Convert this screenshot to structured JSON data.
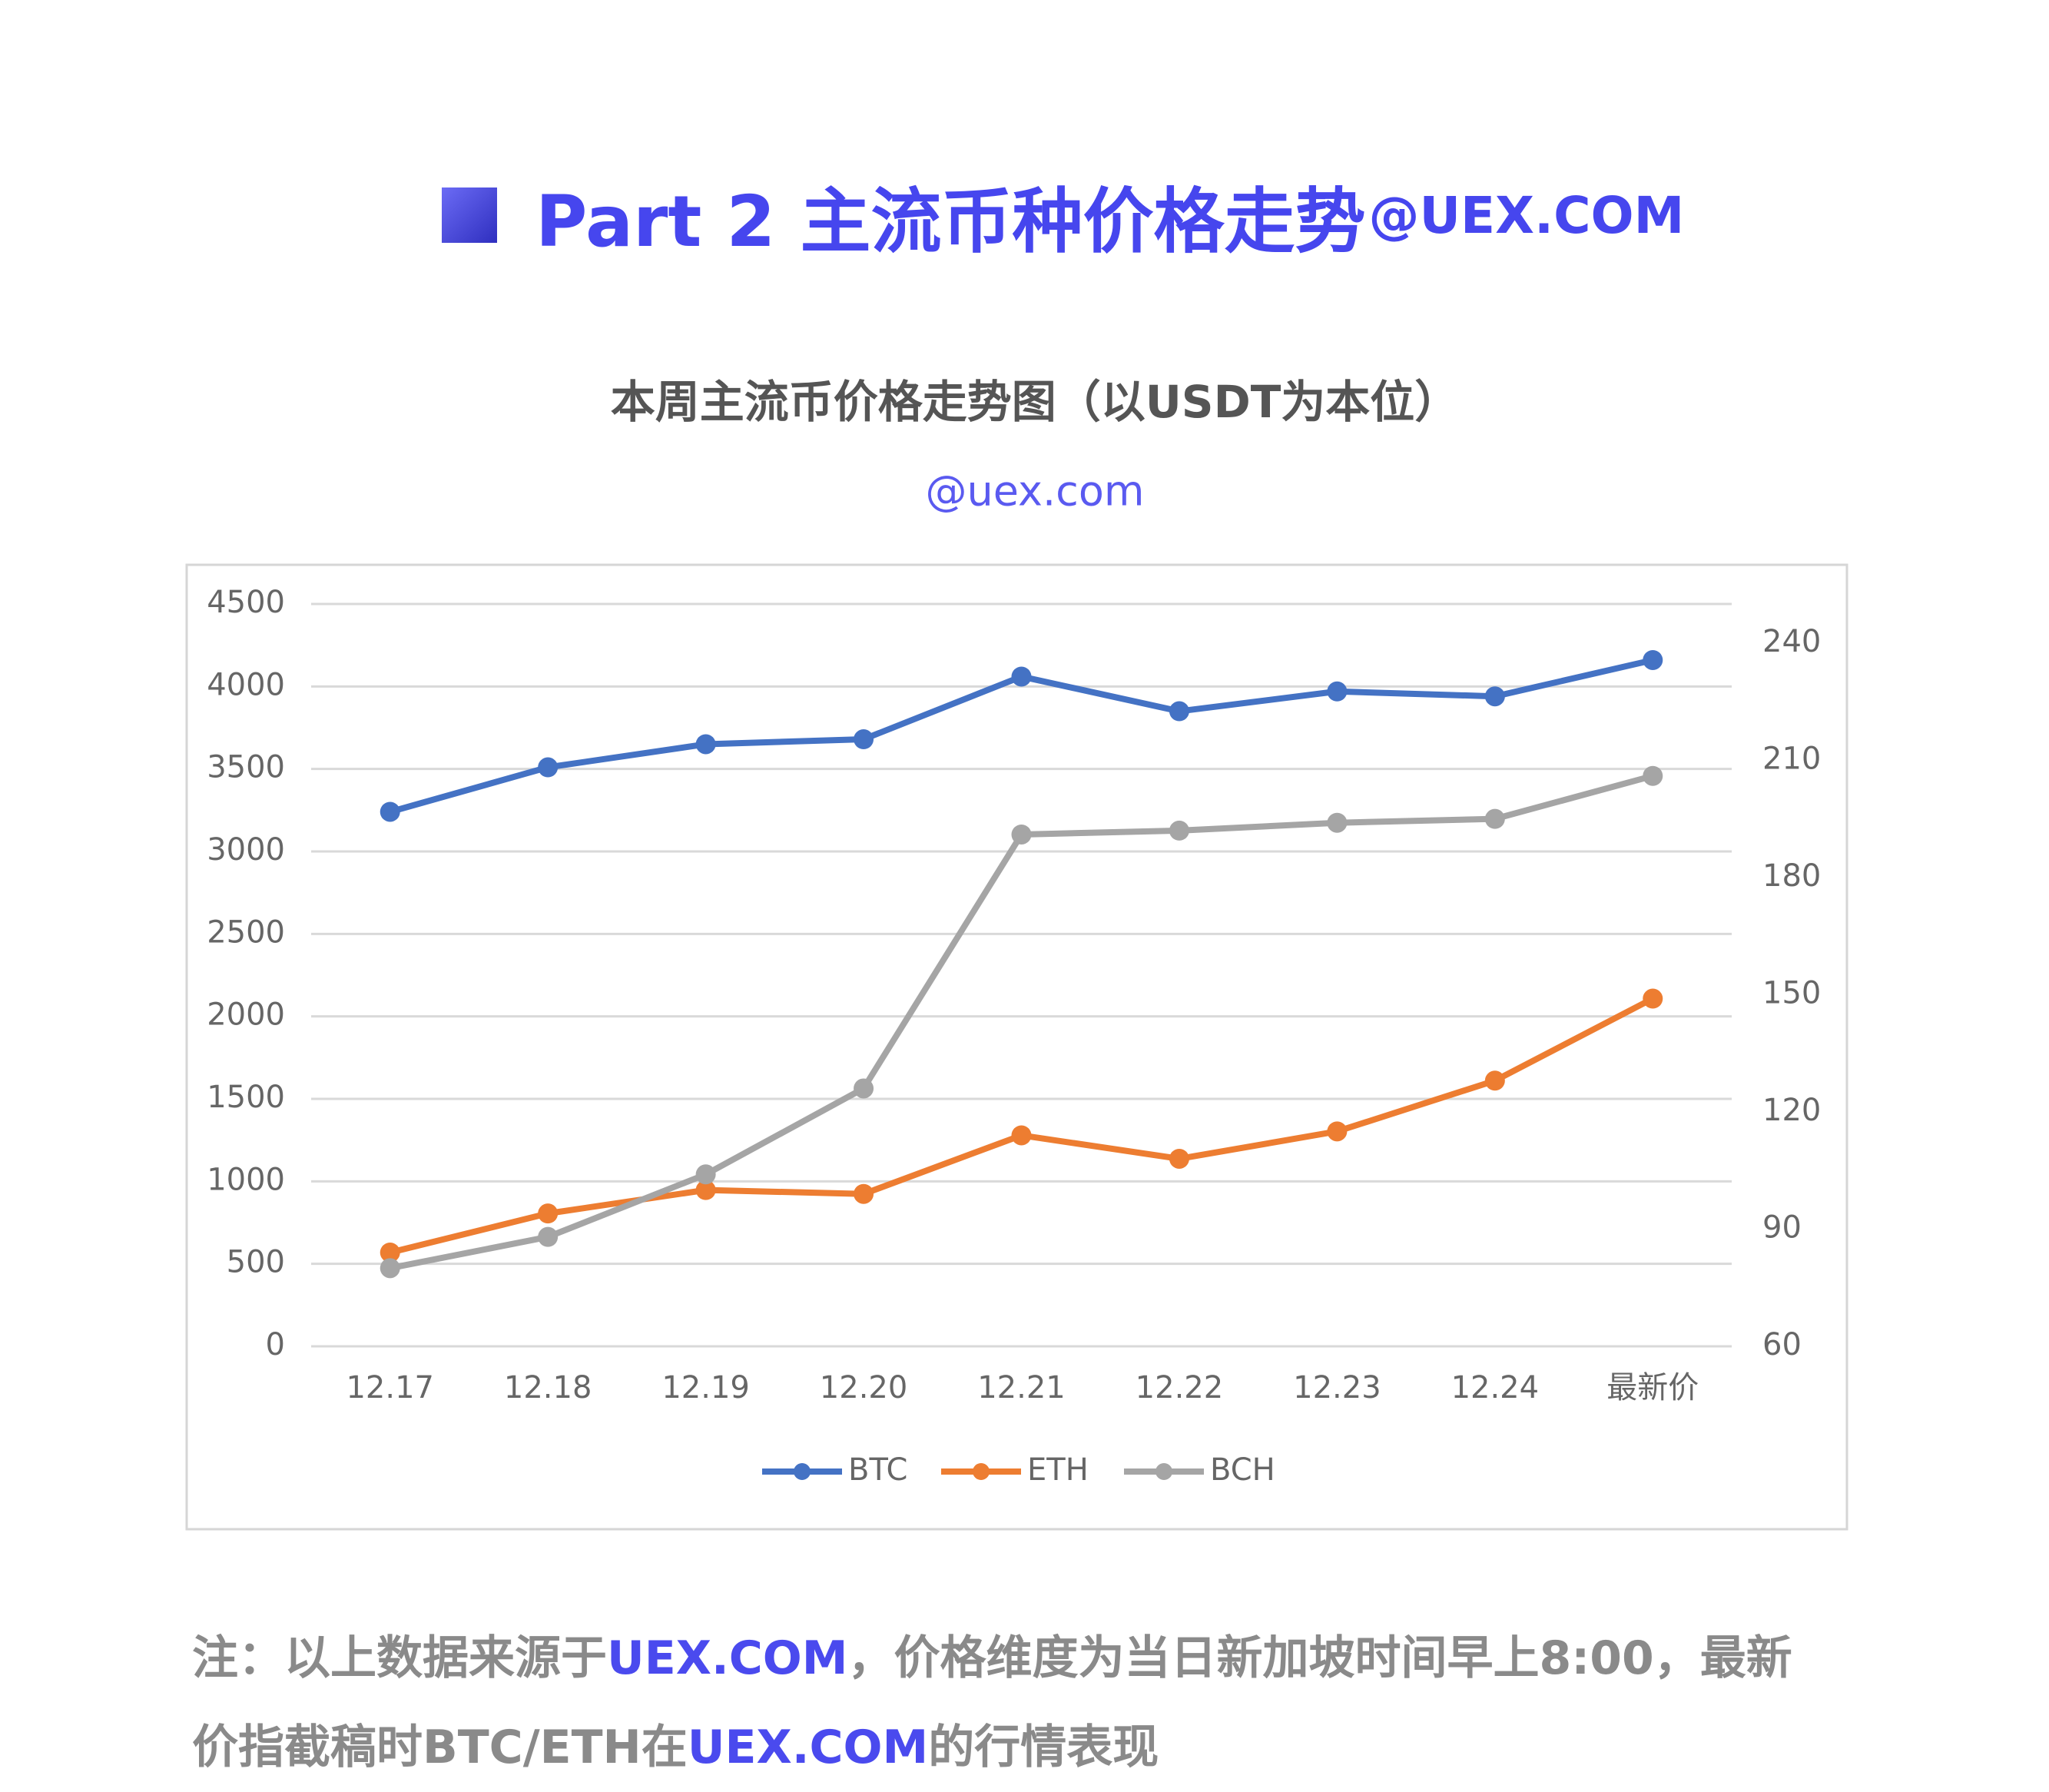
{
  "header": {
    "title": "Part 2 主流币种价格走势",
    "site": "@UEX.COM"
  },
  "chart_data": {
    "type": "line",
    "title": "本周主流币价格走势图（以USDT为本位）",
    "subtitle": "@uex.com",
    "categories": [
      "12.17",
      "12.18",
      "12.19",
      "12.20",
      "12.21",
      "12.22",
      "12.23",
      "12.24",
      "最新价"
    ],
    "series": [
      {
        "name": "BTC",
        "color": "#4472c4",
        "values": [
          3240,
          3510,
          3650,
          3680,
          4060,
          3850,
          3970,
          3940,
          4160
        ]
      },
      {
        "name": "ETH",
        "color": "#ed7d31",
        "axis": "y2",
        "values": [
          84,
          94,
          100,
          99,
          114,
          108,
          115,
          128,
          149
        ]
      },
      {
        "name": "BCH",
        "color": "#a5a5a5",
        "axis": "y2",
        "values": [
          80,
          88,
          104,
          126,
          191,
          192,
          194,
          195,
          206
        ]
      }
    ],
    "ylim": [
      0,
      4500
    ],
    "yticks": [
      0,
      500,
      1000,
      1500,
      2000,
      2500,
      3000,
      3500,
      4000,
      4500
    ],
    "y2lim": [
      60,
      250
    ],
    "y2ticks": [
      60,
      90,
      120,
      150,
      180,
      210,
      240
    ],
    "grid": true,
    "legend": "bottom"
  },
  "note": {
    "lines": [
      [
        "注：以上数据来源于",
        "UEX.COM",
        "，价格维度为当日新加坡时间早上8:00，最新"
      ],
      [
        "价指截稿时BTC/ETH在",
        "UEX.COM",
        "的行情表现"
      ]
    ]
  }
}
